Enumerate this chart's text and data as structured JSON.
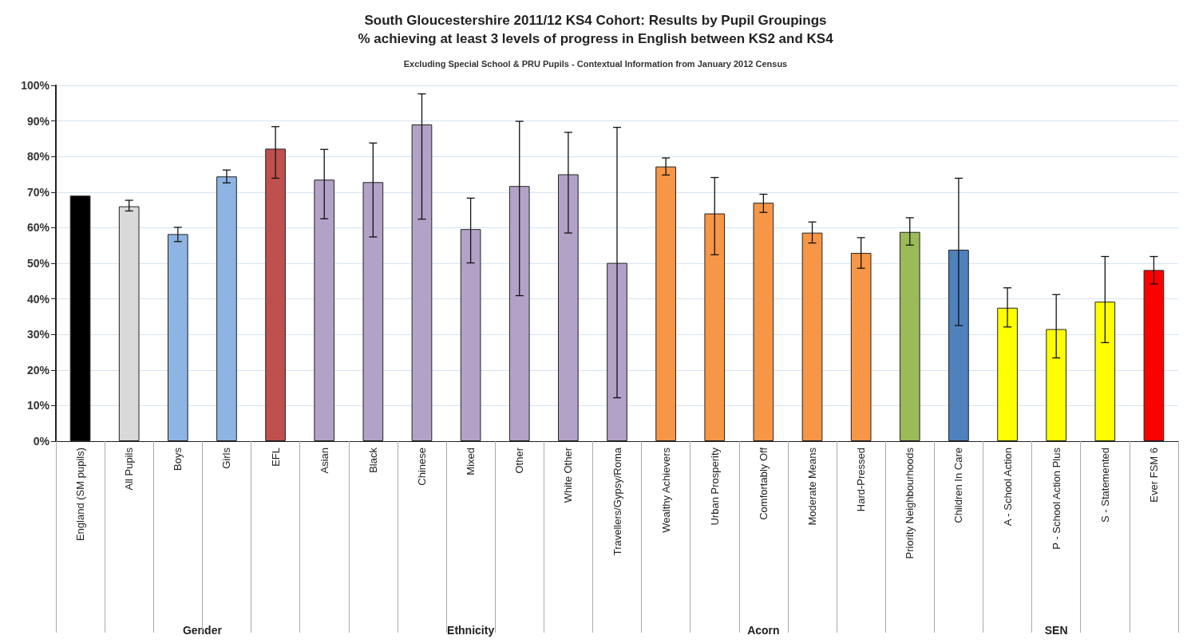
{
  "chart_data": {
    "type": "bar",
    "title": "South Gloucestershire 2011/12 KS4 Cohort: Results by Pupil Groupings",
    "subtitle": "% achieving at least 3 levels of progress in English between KS2 and KS4",
    "annotations": [
      "Excluding Special School & PRU Pupils - Contextual Information from January 2012 Census",
      "Gender",
      "Ethnicity",
      "Acorn",
      "SEN"
    ],
    "categories": [
      "England (SM pupils)",
      "All Pupils",
      "Boys",
      "Girls",
      "EFL",
      "Asian",
      "Black",
      "Chinese",
      "Mixed",
      "Other",
      "White Other",
      "Travellers/Gypsy/Roma",
      "Wealthy Achievers",
      "Urban Prosperity",
      "Comfortably Off",
      "Moderate Means",
      "Hard-Pressed",
      "Priority Neighbourhoods",
      "Children In Care",
      "A - School Action",
      "P - School Action Plus",
      "S - Statemented",
      "Ever FSM 6"
    ],
    "values": [
      69,
      66,
      58.2,
      74.4,
      82.2,
      73.5,
      72.8,
      89,
      59.6,
      71.7,
      75,
      50.1,
      77.2,
      64,
      67,
      58.6,
      52.9,
      58.8,
      53.8,
      37.5,
      31.5,
      39.2,
      48.1
    ],
    "colors": [
      "#000000",
      "#d9d9d9",
      "#8db4e2",
      "#8db4e2",
      "#c0504d",
      "#b3a2c7",
      "#b3a2c7",
      "#b3a2c7",
      "#b3a2c7",
      "#b3a2c7",
      "#b3a2c7",
      "#b3a2c7",
      "#f79646",
      "#f79646",
      "#f79646",
      "#f79646",
      "#f79646",
      "#9bbb59",
      "#4f81bd",
      "#ffff00",
      "#ffff00",
      "#ffff00",
      "#ff0000"
    ],
    "errors": [
      null,
      [
        64.7,
        67.7
      ],
      [
        56.1,
        60.1
      ],
      [
        72.6,
        76.2
      ],
      [
        73.9,
        88.4
      ],
      [
        62.5,
        82
      ],
      [
        57.4,
        83.8
      ],
      [
        62.4,
        97.6
      ],
      [
        50.1,
        68.3
      ],
      [
        40.9,
        89.9
      ],
      [
        58.5,
        86.8
      ],
      [
        12.2,
        88.2
      ],
      [
        74.8,
        79.6
      ],
      [
        52.4,
        74.1
      ],
      [
        64.3,
        69.4
      ],
      [
        55.7,
        61.6
      ],
      [
        48.6,
        57.2
      ],
      [
        55.1,
        62.8
      ],
      [
        32.5,
        73.9
      ],
      [
        32.1,
        43.1
      ],
      [
        23.4,
        41.2
      ],
      [
        27.7,
        51.9
      ],
      [
        44.2,
        51.9
      ]
    ],
    "ylim": [
      0,
      100
    ],
    "yticks": [
      {
        "value": 0,
        "label": "0%"
      },
      {
        "value": 10,
        "label": "10%"
      },
      {
        "value": 20,
        "label": "20%"
      },
      {
        "value": 30,
        "label": "30%"
      },
      {
        "value": 40,
        "label": "40%"
      },
      {
        "value": 50,
        "label": "50%"
      },
      {
        "value": 60,
        "label": "60%"
      },
      {
        "value": 70,
        "label": "70%"
      },
      {
        "value": 80,
        "label": "80%"
      },
      {
        "value": 90,
        "label": "90%"
      },
      {
        "value": 100,
        "label": "100%"
      }
    ],
    "grid": "y"
  }
}
